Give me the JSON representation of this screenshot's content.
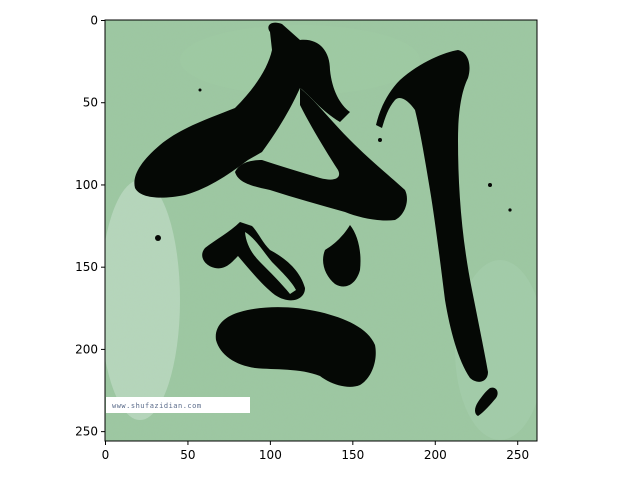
{
  "image": {
    "description_icon": "calligraphy-character-image",
    "watermark_text": "www.shufazidian.com",
    "background_color": "#9cc8a0",
    "ink_color": "#050805"
  },
  "axes": {
    "x_ticks": [
      "0",
      "50",
      "100",
      "150",
      "200",
      "250"
    ],
    "y_ticks": [
      "0",
      "50",
      "100",
      "150",
      "200",
      "250"
    ],
    "x_range": [
      0,
      262
    ],
    "y_range": [
      0,
      256
    ]
  }
}
